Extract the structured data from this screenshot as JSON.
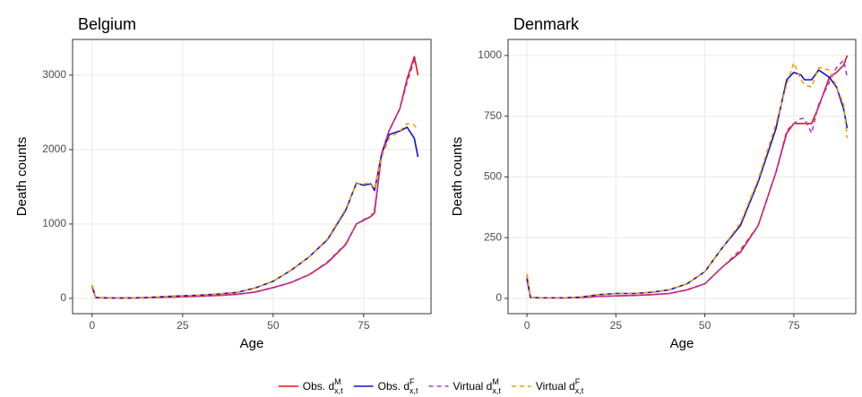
{
  "chart_data": [
    {
      "type": "line",
      "title": "Belgium",
      "x_label": "Age",
      "y_label": "Death counts",
      "x": [
        0,
        1,
        5,
        10,
        15,
        20,
        25,
        30,
        35,
        40,
        45,
        50,
        55,
        60,
        65,
        70,
        73,
        75,
        77,
        78,
        80,
        82,
        85,
        87,
        89,
        90
      ],
      "xlim": [
        -5.4,
        93.6
      ],
      "ylim": [
        -205,
        3480
      ],
      "xticks": [
        0,
        25,
        50,
        75
      ],
      "yticks": [
        0,
        1000,
        2000,
        3000
      ],
      "grid": true,
      "legend": "bottom",
      "series": [
        {
          "name": "Obs. d",
          "name_sup": "M",
          "name_sub": "x,t",
          "color": "#e8101c",
          "linetype": "solid",
          "values": [
            150,
            10,
            5,
            5,
            8,
            15,
            22,
            30,
            40,
            55,
            85,
            145,
            215,
            320,
            480,
            720,
            1000,
            1050,
            1100,
            1150,
            1950,
            2250,
            2550,
            2950,
            3250,
            3000
          ]
        },
        {
          "name": "Obs. d",
          "name_sup": "F",
          "name_sub": "x,t",
          "color": "#1010d0",
          "linetype": "solid",
          "values": [
            170,
            12,
            5,
            5,
            12,
            25,
            35,
            45,
            60,
            80,
            140,
            230,
            380,
            560,
            790,
            1180,
            1550,
            1520,
            1540,
            1450,
            1950,
            2200,
            2250,
            2300,
            2150,
            1900
          ]
        },
        {
          "name": "Virtual d",
          "name_sup": "M",
          "name_sub": "x,t",
          "color": "#a040e0",
          "linetype": "dashed",
          "values": [
            170,
            12,
            5,
            5,
            8,
            15,
            22,
            30,
            40,
            55,
            85,
            145,
            215,
            320,
            490,
            730,
            1000,
            1060,
            1100,
            1200,
            1950,
            2250,
            2550,
            2900,
            3200,
            3200
          ]
        },
        {
          "name": "Virtual d",
          "name_sup": "F",
          "name_sub": "x,t",
          "color": "#f5a000",
          "linetype": "dashed",
          "values": [
            180,
            15,
            5,
            5,
            12,
            25,
            35,
            45,
            60,
            80,
            140,
            230,
            380,
            560,
            800,
            1200,
            1540,
            1540,
            1550,
            1470,
            1900,
            2150,
            2250,
            2350,
            2330,
            2250
          ]
        }
      ]
    },
    {
      "type": "line",
      "title": "Denmark",
      "x_label": "Age",
      "y_label": "Death counts",
      "x": [
        0,
        1,
        5,
        10,
        15,
        20,
        25,
        30,
        35,
        40,
        45,
        50,
        55,
        60,
        65,
        70,
        73,
        75,
        77,
        78,
        80,
        82,
        85,
        87,
        89,
        90
      ],
      "xlim": [
        -5.3,
        92.4
      ],
      "ylim": [
        -63,
        1066
      ],
      "xticks": [
        0,
        25,
        50,
        75
      ],
      "yticks": [
        0,
        250,
        500,
        750,
        1000
      ],
      "grid": true,
      "series": [
        {
          "color": "#e8101c",
          "linetype": "solid",
          "values": [
            90,
            3,
            2,
            2,
            3,
            8,
            10,
            12,
            15,
            20,
            35,
            60,
            130,
            190,
            300,
            520,
            680,
            720,
            720,
            720,
            720,
            790,
            910,
            930,
            960,
            1000
          ]
        },
        {
          "color": "#1010d0",
          "linetype": "solid",
          "values": [
            80,
            3,
            2,
            2,
            5,
            15,
            20,
            20,
            25,
            35,
            60,
            110,
            210,
            300,
            480,
            700,
            900,
            930,
            920,
            900,
            900,
            940,
            910,
            870,
            780,
            700
          ]
        },
        {
          "color": "#a040e0",
          "linetype": "dashed",
          "values": [
            100,
            3,
            2,
            2,
            3,
            8,
            10,
            12,
            15,
            20,
            35,
            60,
            130,
            200,
            300,
            520,
            690,
            720,
            740,
            740,
            680,
            800,
            890,
            950,
            980,
            910
          ]
        },
        {
          "color": "#f5a000",
          "linetype": "dashed",
          "values": [
            100,
            3,
            2,
            2,
            5,
            15,
            20,
            20,
            25,
            35,
            60,
            110,
            210,
            310,
            490,
            720,
            880,
            970,
            900,
            880,
            870,
            950,
            940,
            870,
            800,
            660
          ]
        }
      ]
    }
  ]
}
